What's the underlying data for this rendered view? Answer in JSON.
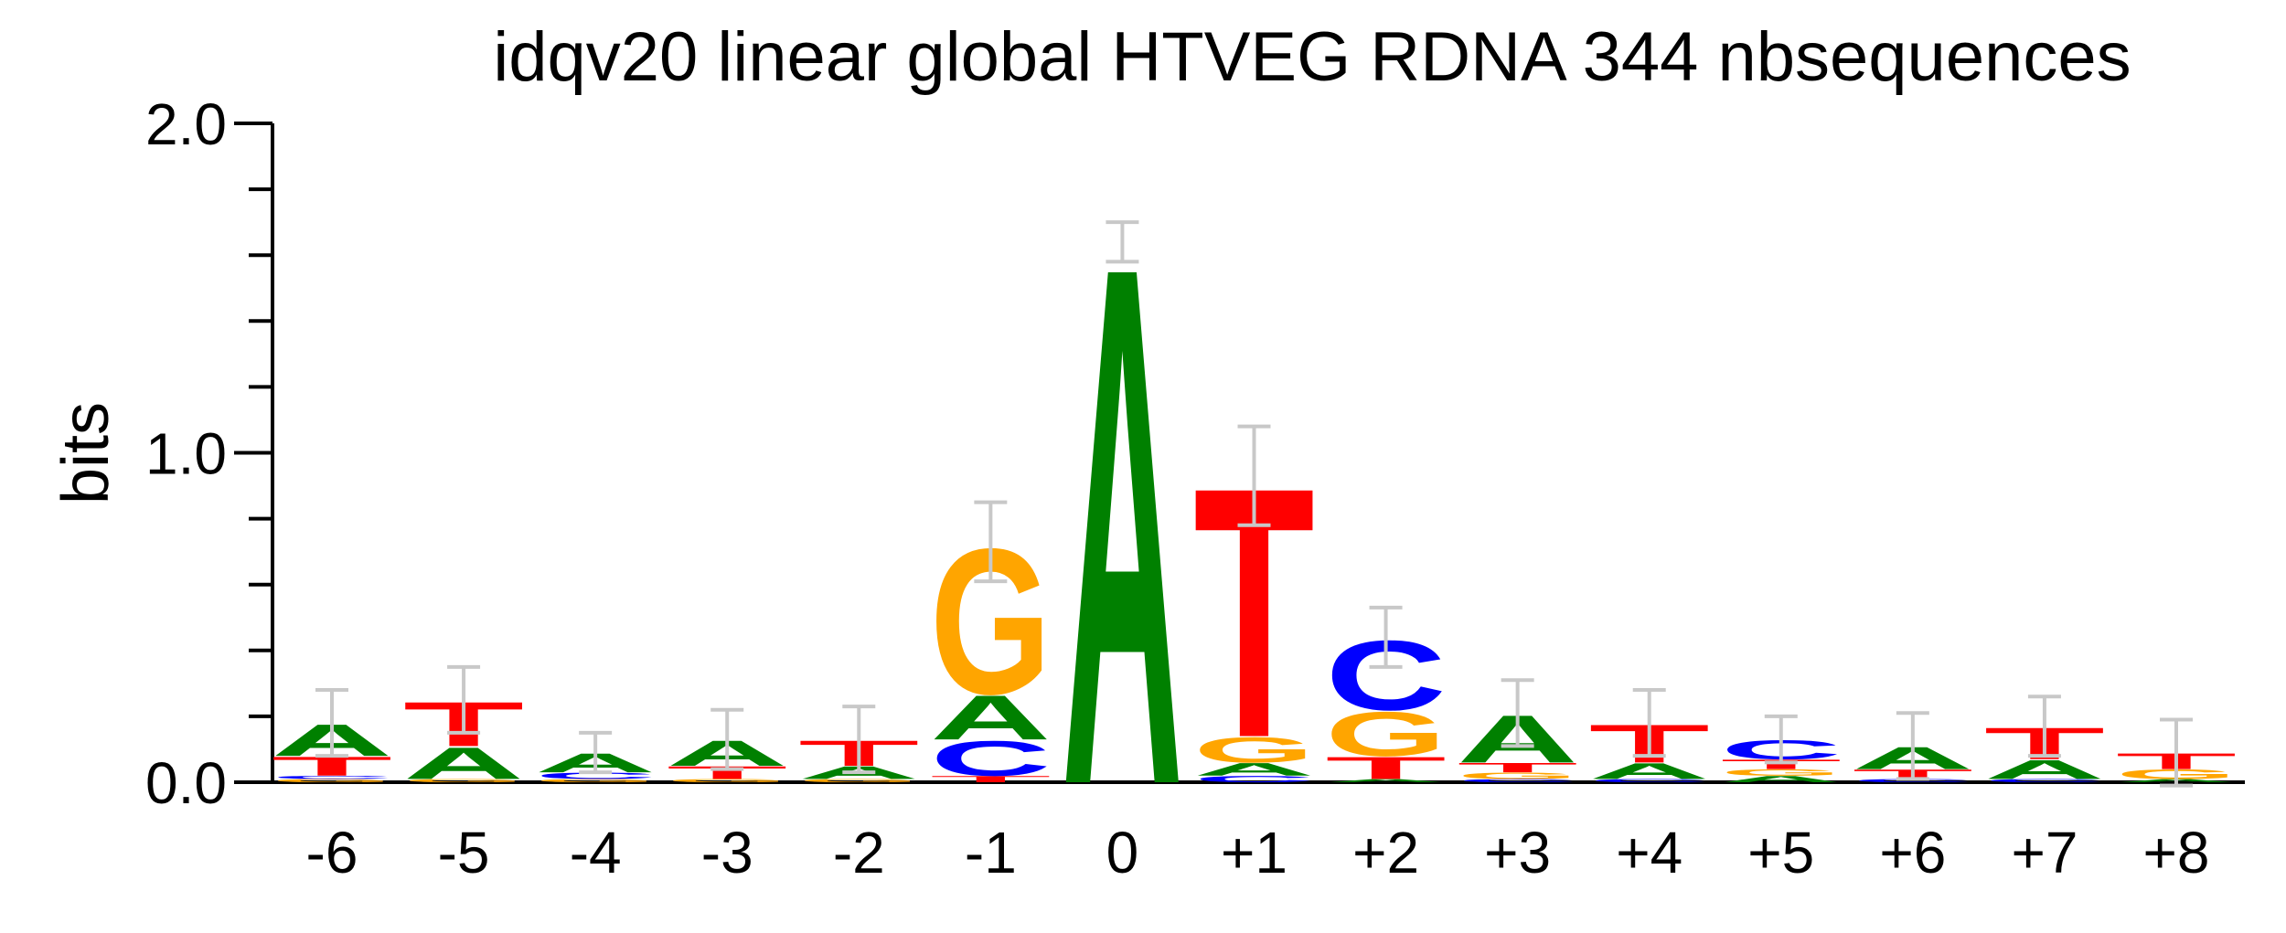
{
  "chart_data": {
    "type": "logo",
    "title": "idqv20 linear global HTVEG RDNA 344 nbsequences",
    "y_label": "bits",
    "categories": [
      "-6",
      "-5",
      "-4",
      "-3",
      "-2",
      "-1",
      "0",
      "+1",
      "+2",
      "+3",
      "+4",
      "+5",
      "+6",
      "+7",
      "+8"
    ],
    "stacks": [
      {
        "letters": [
          "G",
          "C",
          "T",
          "A"
        ],
        "heights": [
          0.01,
          0.01,
          0.06,
          0.1
        ]
      },
      {
        "letters": [
          "G",
          "A",
          "T"
        ],
        "heights": [
          0.01,
          0.1,
          0.14
        ]
      },
      {
        "letters": [
          "G",
          "C",
          "A"
        ],
        "heights": [
          0.01,
          0.02,
          0.06
        ]
      },
      {
        "letters": [
          "G",
          "T",
          "A"
        ],
        "heights": [
          0.01,
          0.04,
          0.08
        ]
      },
      {
        "letters": [
          "G",
          "A",
          "T"
        ],
        "heights": [
          0.01,
          0.04,
          0.08
        ]
      },
      {
        "letters": [
          "T",
          "C",
          "A",
          "G"
        ],
        "heights": [
          0.02,
          0.11,
          0.14,
          0.46
        ]
      },
      {
        "letters": [
          "A"
        ],
        "heights": [
          1.64
        ]
      },
      {
        "letters": [
          "C",
          "A",
          "G",
          "T"
        ],
        "heights": [
          0.02,
          0.04,
          0.08,
          0.79
        ]
      },
      {
        "letters": [
          "A",
          "T",
          "G",
          "C"
        ],
        "heights": [
          0.01,
          0.07,
          0.14,
          0.22
        ]
      },
      {
        "letters": [
          "C",
          "G",
          "T",
          "A"
        ],
        "heights": [
          0.01,
          0.02,
          0.03,
          0.15
        ]
      },
      {
        "letters": [
          "C",
          "A",
          "T"
        ],
        "heights": [
          0.01,
          0.05,
          0.12
        ]
      },
      {
        "letters": [
          "A",
          "G",
          "T",
          "C"
        ],
        "heights": [
          0.02,
          0.02,
          0.03,
          0.06
        ]
      },
      {
        "letters": [
          "C",
          "T",
          "A"
        ],
        "heights": [
          0.01,
          0.03,
          0.07
        ]
      },
      {
        "letters": [
          "C",
          "A",
          "T"
        ],
        "heights": [
          0.01,
          0.06,
          0.1
        ]
      },
      {
        "letters": [
          "A",
          "G",
          "T"
        ],
        "heights": [
          0.01,
          0.03,
          0.05
        ]
      }
    ],
    "errors": [
      0.1,
      0.1,
      0.06,
      0.09,
      0.1,
      0.12,
      0.06,
      0.15,
      0.09,
      0.1,
      0.1,
      0.07,
      0.1,
      0.09,
      0.1
    ],
    "letter_colors": {
      "A": "#008000",
      "C": "#0000ff",
      "G": "#ffa500",
      "T": "#ff0000"
    },
    "error_color": "#c8c8c8",
    "ylim": [
      0,
      2
    ],
    "yticks": [
      {
        "value": 0,
        "label": "0.0"
      },
      {
        "value": 1,
        "label": "1.0"
      },
      {
        "value": 2,
        "label": "2.0"
      }
    ],
    "yticks_minor": [
      0.2,
      0.4,
      0.6,
      0.8,
      1.2,
      1.4,
      1.6,
      1.8
    ]
  }
}
